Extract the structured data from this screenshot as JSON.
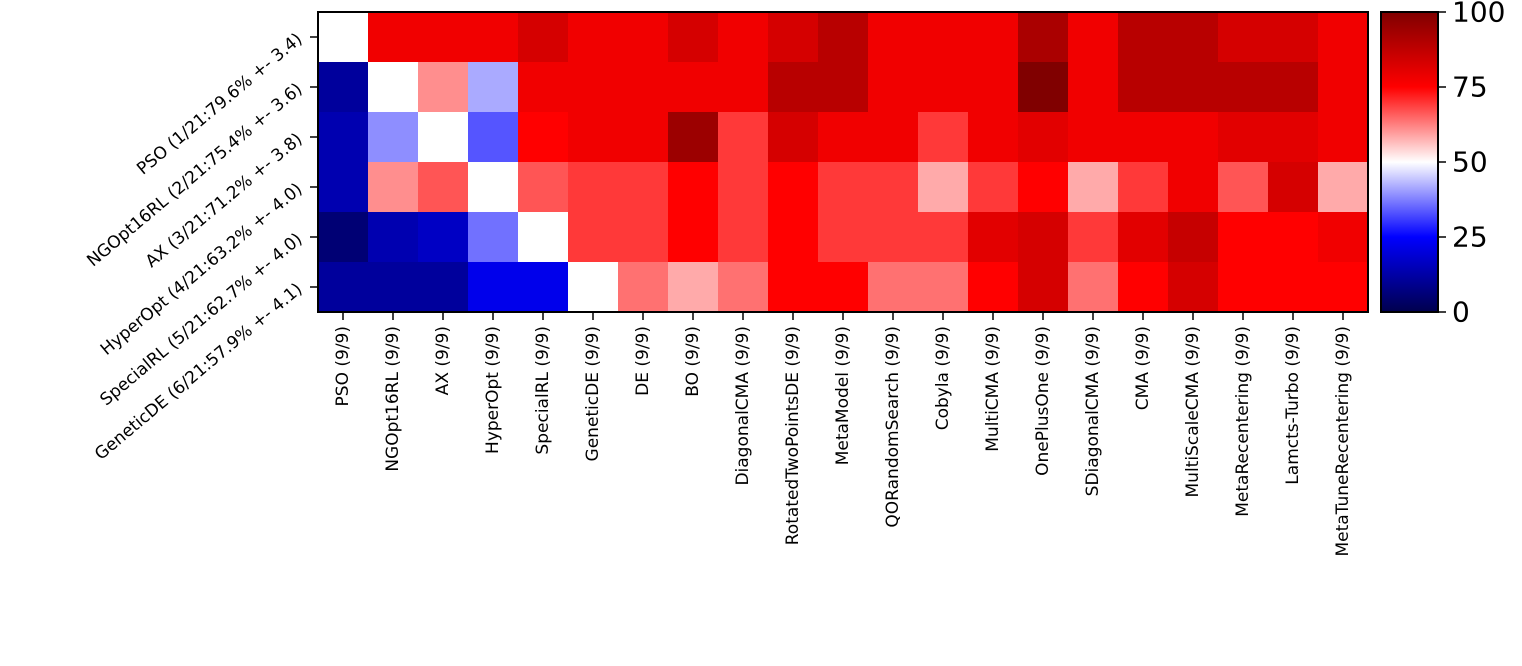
{
  "chart_data": {
    "type": "heatmap",
    "title": "",
    "xlabel": "",
    "ylabel": "",
    "colormap": "seismic",
    "vmin": 0,
    "vmax": 100,
    "row_labels": [
      "PSO (1/21:79.6% +- 3.4)",
      "NGOpt16RL (2/21:75.4% +- 3.6)",
      "AX (3/21:71.2% +- 3.8)",
      "HyperOpt (4/21:63.2% +- 4.0)",
      "SpecialRL (5/21:62.7% +- 4.0)",
      "GeneticDE (6/21:57.9% +- 4.1)"
    ],
    "col_labels": [
      "PSO (9/9)",
      "NGOpt16RL (9/9)",
      "AX (9/9)",
      "HyperOpt (9/9)",
      "SpecialRL (9/9)",
      "GeneticDE (9/9)",
      "DE (9/9)",
      "BO (9/9)",
      "DiagonalCMA (9/9)",
      "RotatedTwoPointsDE (9/9)",
      "MetaModel (9/9)",
      "QORandomSearch (9/9)",
      "Cobyla (9/9)",
      "MultiCMA (9/9)",
      "OnePlusOne (9/9)",
      "SDiagonalCMA (9/9)",
      "CMA (9/9)",
      "MultiScaleCMA (9/9)",
      "MetaRecentering (9/9)",
      "Lamcts-Turbo (9/9)",
      "MetaTuneRecentering (9/9)"
    ],
    "values": [
      [
        50,
        77.8,
        77.8,
        77.8,
        83.3,
        77.8,
        77.8,
        83.3,
        77.8,
        83.3,
        88.9,
        77.8,
        77.8,
        77.8,
        91.7,
        77.8,
        88.9,
        88.9,
        83.3,
        83.3,
        77.8
      ],
      [
        11.1,
        50,
        61.1,
        41.7,
        77.8,
        77.8,
        77.8,
        77.8,
        77.8,
        88.9,
        88.9,
        77.8,
        77.8,
        77.8,
        100,
        77.8,
        88.9,
        88.9,
        88.9,
        88.9,
        77.8
      ],
      [
        13.9,
        38.9,
        50,
        33.3,
        75,
        77.8,
        77.8,
        94.4,
        69.4,
        83.3,
        77.8,
        77.8,
        69.4,
        77.8,
        80.6,
        77.8,
        77.8,
        77.8,
        80.6,
        80.6,
        77.8
      ],
      [
        13.9,
        61.1,
        66.7,
        50,
        66.7,
        69.4,
        69.4,
        75,
        69.4,
        75,
        69.4,
        69.4,
        58.3,
        69.4,
        75,
        58.3,
        69.4,
        77.8,
        66.7,
        83.3,
        58.3
      ],
      [
        5.6,
        13.9,
        16.7,
        36.1,
        50,
        69.4,
        69.4,
        75,
        69.4,
        75,
        69.4,
        69.4,
        69.4,
        80.6,
        83.3,
        69.4,
        80.6,
        86.1,
        75,
        75,
        77.8
      ],
      [
        11.1,
        11.1,
        11.1,
        22.2,
        22.2,
        50,
        63.9,
        58.3,
        63.9,
        75,
        75,
        63.9,
        63.9,
        75,
        83.3,
        63.9,
        75,
        83.3,
        75,
        75,
        75
      ]
    ],
    "colorbar": {
      "ticks": [
        0,
        25,
        50,
        75,
        100
      ],
      "tick_labels": [
        "0",
        "25",
        "50",
        "75",
        "100"
      ]
    }
  }
}
